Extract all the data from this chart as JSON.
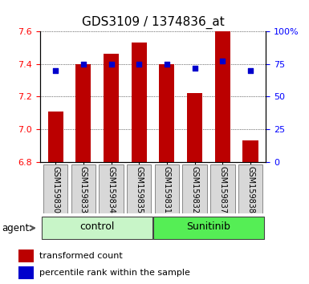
{
  "title": "GDS3109 / 1374836_at",
  "samples": [
    "GSM159830",
    "GSM159833",
    "GSM159834",
    "GSM159835",
    "GSM159831",
    "GSM159832",
    "GSM159837",
    "GSM159838"
  ],
  "red_values": [
    7.11,
    7.4,
    7.46,
    7.53,
    7.4,
    7.22,
    7.6,
    6.93
  ],
  "blue_values": [
    70,
    75,
    75,
    75,
    75,
    72,
    77,
    70
  ],
  "ylim_left": [
    6.8,
    7.6
  ],
  "ylim_right": [
    0,
    100
  ],
  "yticks_left": [
    6.8,
    7.0,
    7.2,
    7.4,
    7.6
  ],
  "yticks_right": [
    0,
    25,
    50,
    75,
    100
  ],
  "ytick_labels_right": [
    "0",
    "25",
    "50",
    "75",
    "100%"
  ],
  "groups": [
    {
      "label": "control",
      "indices": [
        0,
        1,
        2,
        3
      ],
      "color": "#c8f5c8"
    },
    {
      "label": "Sunitinib",
      "indices": [
        4,
        5,
        6,
        7
      ],
      "color": "#55ee55"
    }
  ],
  "bar_color": "#bb0000",
  "blue_color": "#0000cc",
  "bar_width": 0.55,
  "bar_base": 6.8,
  "grid_color": "#000000",
  "sample_box_color": "#d8d8d8",
  "plot_bg": "#ffffff",
  "title_fontsize": 11,
  "tick_fontsize": 8,
  "sample_fontsize": 7,
  "group_fontsize": 9,
  "legend_fontsize": 8
}
